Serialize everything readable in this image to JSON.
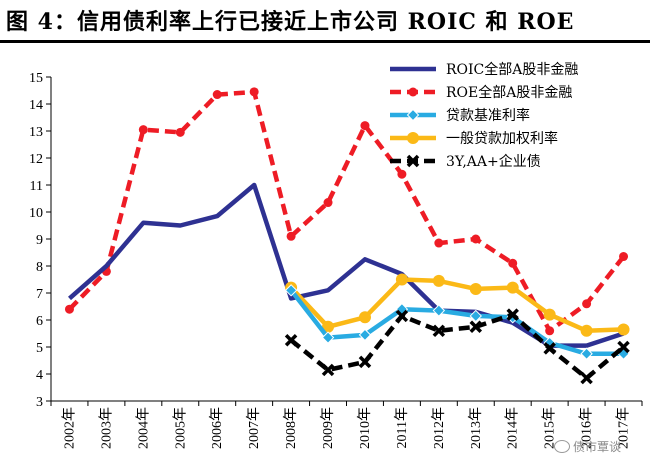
{
  "title": "图 4：信用债利率上行已接近上市公司 ROIC 和 ROE",
  "watermark": "债市覃谈",
  "chart_data": {
    "type": "line",
    "categories": [
      "2002年",
      "2003年",
      "2004年",
      "2005年",
      "2006年",
      "2007年",
      "2008年",
      "2009年",
      "2010年",
      "2011年",
      "2012年",
      "2013年",
      "2014年",
      "2015年",
      "2016年",
      "2017年"
    ],
    "ylim": [
      3,
      15
    ],
    "yticks": [
      3,
      4,
      5,
      6,
      7,
      8,
      9,
      10,
      11,
      12,
      13,
      14,
      15
    ],
    "grid": false,
    "legend_position": "top-right",
    "series": [
      {
        "name": "ROIC全部A股非金融",
        "color": "#2E3192",
        "marker": "none",
        "dash": "solid",
        "values": [
          6.8,
          8.0,
          9.6,
          9.5,
          9.85,
          11.0,
          6.8,
          7.1,
          8.25,
          7.7,
          6.35,
          6.3,
          5.9,
          5.05,
          5.05,
          5.5
        ]
      },
      {
        "name": "ROE全部A股非金融",
        "color": "#EE1C25",
        "marker": "circle-small",
        "dash": "dash",
        "values": [
          6.4,
          7.8,
          13.05,
          12.95,
          14.35,
          14.45,
          9.1,
          10.35,
          13.2,
          11.4,
          8.85,
          9.0,
          8.1,
          5.6,
          6.6,
          8.35
        ]
      },
      {
        "name": "贷款基准利率",
        "color": "#29ABE2",
        "marker": "diamond",
        "dash": "solid",
        "values": [
          null,
          null,
          null,
          null,
          null,
          null,
          7.1,
          5.35,
          5.45,
          6.4,
          6.35,
          6.15,
          6.1,
          5.15,
          4.75,
          4.75
        ]
      },
      {
        "name": "一般贷款加权利率",
        "color": "#FBB917",
        "marker": "circle",
        "dash": "solid",
        "values": [
          null,
          null,
          null,
          null,
          null,
          null,
          7.2,
          5.75,
          6.1,
          7.5,
          7.45,
          7.15,
          7.2,
          6.2,
          5.6,
          5.65
        ]
      },
      {
        "name": "3Y,AA+企业债",
        "color": "#000000",
        "marker": "x",
        "dash": "dash",
        "values": [
          null,
          null,
          null,
          null,
          null,
          null,
          5.25,
          4.15,
          4.45,
          6.15,
          5.6,
          5.75,
          6.2,
          4.95,
          3.85,
          5.0
        ]
      }
    ]
  }
}
